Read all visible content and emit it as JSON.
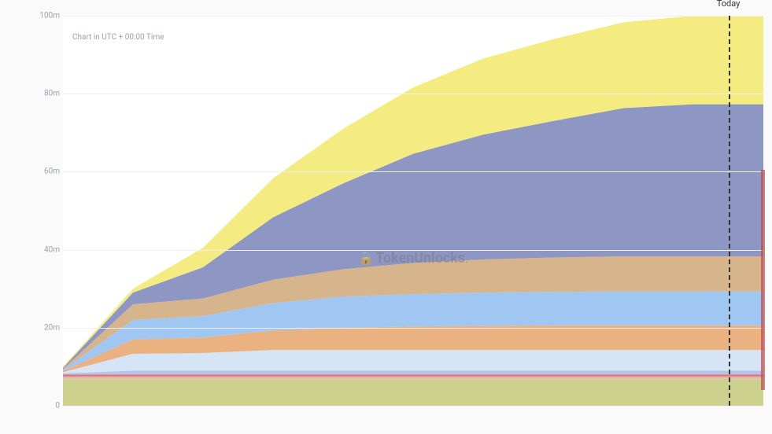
{
  "chart": {
    "type": "area",
    "note_text": "Chart in UTC + 00:00 Time",
    "note_fontsize": 10,
    "note_color": "#9aa1a9",
    "ylim": [
      0,
      100
    ],
    "y_ticks": [
      0,
      20,
      40,
      60,
      80,
      100
    ],
    "y_tick_labels": [
      "0",
      "20m",
      "40m",
      "60m",
      "80m",
      "100m"
    ],
    "y_tick_fontsize": 10,
    "y_tick_color": "#9aa1a9",
    "grid_color": "#f0f0f0",
    "background_color": "#fafafa",
    "plot_background_color": "#ffffff",
    "watermark_text": "TokenUnlocks",
    "watermark_color": "rgba(120,120,130,0.5)",
    "watermark_lock_color": "rgba(150,100,160,0.55)",
    "watermark_fontsize": 18,
    "today_label": "Today",
    "today_x": 0.95,
    "today_line_color": "#333333",
    "right_bar_color": "#b84a4a",
    "x_count": 11,
    "layers": [
      {
        "name": "layer-olive",
        "color": "#c4c97a",
        "opacity": 0.85,
        "values": [
          7,
          7,
          7,
          7,
          7,
          7,
          7,
          7,
          7,
          7,
          7
        ]
      },
      {
        "name": "layer-pink",
        "color": "#e4a0a8",
        "opacity": 0.85,
        "values": [
          0.5,
          0.5,
          0.5,
          0.5,
          0.5,
          0.5,
          0.5,
          0.5,
          0.5,
          0.5,
          0.5
        ]
      },
      {
        "name": "layer-red",
        "color": "#d45a5a",
        "opacity": 0.85,
        "values": [
          0.5,
          0.5,
          0.5,
          0.5,
          0.5,
          0.5,
          0.5,
          0.5,
          0.5,
          0.5,
          0.5
        ]
      },
      {
        "name": "layer-lavender",
        "color": "#b0b7e0",
        "opacity": 0.85,
        "values": [
          0.3,
          1.0,
          1.0,
          1.0,
          1.0,
          1.0,
          1.0,
          1.0,
          1.0,
          1.0,
          1.0
        ]
      },
      {
        "name": "layer-lightblue",
        "color": "#cfe0f5",
        "opacity": 0.85,
        "values": [
          0.3,
          4.3,
          4.5,
          5.3,
          5.3,
          5.3,
          5.3,
          5.3,
          5.3,
          5.3,
          5.3
        ]
      },
      {
        "name": "layer-orange",
        "color": "#e6a46a",
        "opacity": 0.85,
        "values": [
          0.3,
          3.7,
          4.0,
          5.0,
          5.7,
          6.0,
          6.2,
          6.3,
          6.3,
          6.3,
          6.3
        ]
      },
      {
        "name": "layer-skyblue",
        "color": "#8fbdf0",
        "opacity": 0.85,
        "values": [
          0.3,
          5.0,
          5.5,
          7.0,
          8.0,
          8.3,
          8.5,
          8.6,
          8.7,
          8.7,
          8.7
        ]
      },
      {
        "name": "layer-tan",
        "color": "#d0a878",
        "opacity": 0.85,
        "values": [
          0.2,
          4.0,
          4.5,
          6.0,
          7.0,
          8.0,
          8.5,
          8.8,
          9.0,
          9.0,
          9.0
        ]
      },
      {
        "name": "layer-slate",
        "color": "#7a84b8",
        "opacity": 0.85,
        "values": [
          0.3,
          3.0,
          8.0,
          16.0,
          22.0,
          28.0,
          32.0,
          35.0,
          38.0,
          39.0,
          39.0
        ]
      },
      {
        "name": "layer-yellow",
        "color": "#f2e96a",
        "opacity": 0.85,
        "values": [
          0.3,
          1.0,
          5.0,
          10.0,
          14.0,
          17.0,
          19.5,
          21.0,
          22.0,
          22.7,
          23.0
        ]
      }
    ]
  }
}
